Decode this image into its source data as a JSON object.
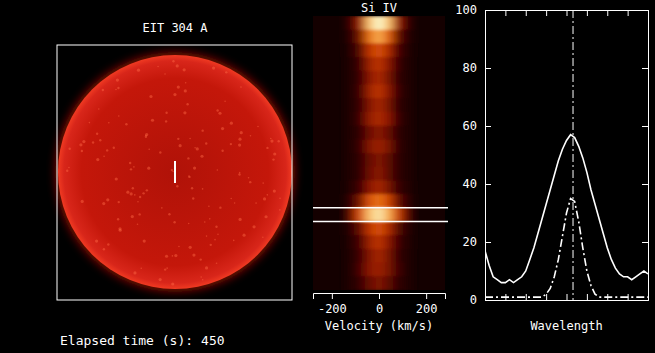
{
  "chart_data": [
    {
      "type": "image",
      "title": "EIT 304 A",
      "time_label": "Elapsed time (s):",
      "elapsed_time": 450
    },
    {
      "type": "heatmap",
      "title": "Si IV",
      "x_label": "Velocity (km/s)",
      "xlim": [
        -280,
        280
      ],
      "xticks": [
        -200,
        0,
        200
      ],
      "tick_labels": "x",
      "x_bins": [
        -140,
        -100,
        -60,
        -20,
        20,
        60,
        100,
        140
      ],
      "zlim": [
        0,
        100
      ],
      "selected_row": 14,
      "cells": [
        [
          10,
          35,
          85,
          100,
          85,
          35,
          10
        ],
        [
          5,
          25,
          65,
          80,
          60,
          20,
          5
        ],
        [
          3,
          15,
          45,
          55,
          40,
          12,
          3
        ],
        [
          2,
          10,
          35,
          45,
          30,
          8,
          2
        ],
        [
          2,
          8,
          30,
          40,
          25,
          6,
          2
        ],
        [
          2,
          10,
          35,
          45,
          30,
          8,
          2
        ],
        [
          2,
          8,
          28,
          38,
          25,
          6,
          2
        ],
        [
          2,
          10,
          32,
          40,
          30,
          8,
          2
        ],
        [
          2,
          6,
          22,
          30,
          20,
          5,
          2
        ],
        [
          2,
          8,
          28,
          35,
          25,
          6,
          2
        ],
        [
          2,
          6,
          20,
          28,
          18,
          5,
          2
        ],
        [
          2,
          6,
          22,
          30,
          18,
          5,
          2
        ],
        [
          3,
          10,
          30,
          38,
          25,
          8,
          3
        ],
        [
          8,
          25,
          55,
          65,
          50,
          20,
          6
        ],
        [
          25,
          55,
          85,
          95,
          80,
          50,
          20
        ],
        [
          5,
          20,
          45,
          55,
          40,
          15,
          4
        ],
        [
          3,
          12,
          35,
          45,
          30,
          10,
          3
        ],
        [
          2,
          10,
          28,
          38,
          25,
          8,
          2
        ],
        [
          2,
          12,
          30,
          35,
          25,
          10,
          2
        ],
        [
          2,
          8,
          20,
          28,
          18,
          6,
          2
        ]
      ]
    },
    {
      "type": "line",
      "x_label": "Wavelength",
      "xlim": [
        0,
        40
      ],
      "xticks": [
        0,
        5,
        10,
        15,
        20,
        25,
        30,
        35,
        40
      ],
      "ylim": [
        0,
        100
      ],
      "yticks": [
        0,
        20,
        40,
        60,
        80,
        100
      ],
      "tick_labels": "y",
      "grid": false,
      "reference_x": 21.6,
      "x": [
        0,
        1,
        2,
        3,
        4,
        5,
        6,
        7,
        8,
        9,
        10,
        11,
        12,
        13,
        14,
        15,
        16,
        17,
        18,
        19,
        20,
        21,
        22,
        23,
        24,
        25,
        26,
        27,
        28,
        29,
        30,
        31,
        32,
        33,
        34,
        35,
        36,
        37,
        38,
        39,
        40
      ],
      "series": [
        {
          "color": "#ffffff",
          "line_style": "solid",
          "values": [
            17,
            12,
            8,
            7,
            6,
            6,
            7,
            6,
            7,
            8,
            10,
            14,
            18,
            23,
            28,
            33,
            38,
            43,
            48,
            52,
            55,
            57,
            56,
            53,
            49,
            44,
            38,
            33,
            28,
            23,
            18,
            14,
            11,
            9,
            8,
            8,
            7,
            8,
            9,
            10,
            9
          ]
        },
        {
          "color": "#ffffff",
          "line_style": "dashdot",
          "values": [
            1,
            1,
            1,
            1,
            1,
            1,
            1,
            1,
            1,
            1,
            1,
            1,
            1,
            1,
            1,
            2,
            4,
            8,
            14,
            22,
            30,
            35,
            34,
            27,
            18,
            10,
            5,
            2,
            1,
            1,
            1,
            1,
            1,
            1,
            1,
            1,
            1,
            1,
            1,
            1,
            1
          ]
        }
      ]
    }
  ]
}
